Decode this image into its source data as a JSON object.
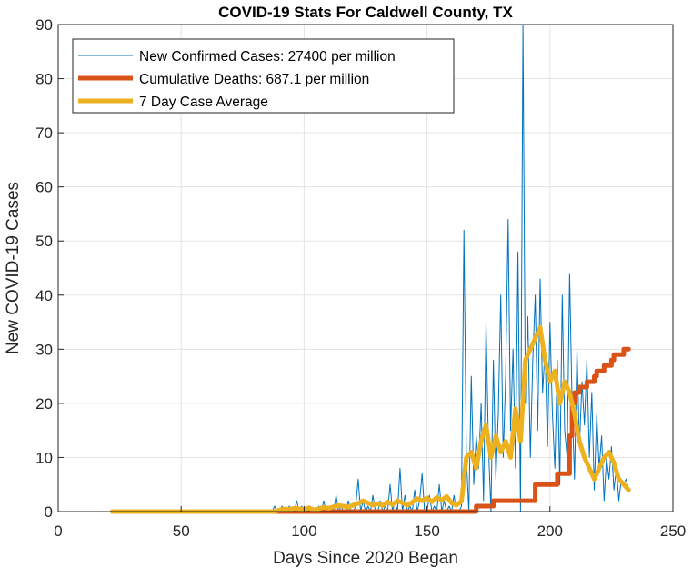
{
  "chart_data": {
    "type": "line",
    "title": "COVID-19 Stats For Caldwell County, TX",
    "xlabel": "Days Since 2020 Began",
    "ylabel": "New COVID-19 Cases",
    "xlim": [
      0,
      250
    ],
    "ylim": [
      0,
      90
    ],
    "xticks": [
      0,
      50,
      100,
      150,
      200,
      250
    ],
    "yticks": [
      0,
      10,
      20,
      30,
      40,
      50,
      60,
      70,
      80,
      90
    ],
    "grid": true,
    "legend_position": "top-left",
    "series": [
      {
        "name": "New Confirmed Cases: 27400 per million",
        "color": "#0072BD",
        "x": [
          22,
          87,
          88,
          89,
          90,
          91,
          92,
          93,
          94,
          95,
          96,
          97,
          98,
          99,
          100,
          101,
          102,
          103,
          104,
          105,
          106,
          107,
          108,
          109,
          110,
          111,
          112,
          113,
          114,
          115,
          116,
          117,
          118,
          119,
          120,
          121,
          122,
          123,
          124,
          125,
          126,
          127,
          128,
          129,
          130,
          131,
          132,
          133,
          134,
          135,
          136,
          137,
          138,
          139,
          140,
          141,
          142,
          143,
          144,
          145,
          146,
          147,
          148,
          149,
          150,
          151,
          152,
          153,
          154,
          155,
          156,
          157,
          158,
          159,
          160,
          161,
          162,
          163,
          164,
          165,
          166,
          167,
          168,
          169,
          170,
          171,
          172,
          173,
          174,
          175,
          176,
          177,
          178,
          179,
          180,
          181,
          182,
          183,
          184,
          185,
          186,
          187,
          188,
          189,
          190,
          191,
          192,
          193,
          194,
          195,
          196,
          197,
          198,
          199,
          200,
          201,
          202,
          203,
          204,
          205,
          206,
          207,
          208,
          209,
          210,
          211,
          212,
          213,
          214,
          215,
          216,
          217,
          218,
          219,
          220,
          221,
          222,
          223,
          224,
          225,
          226,
          227,
          228,
          229,
          230,
          231,
          232
        ],
        "values": [
          0,
          0,
          1,
          0,
          0,
          1,
          0,
          0,
          1,
          0,
          0,
          2,
          0,
          1,
          0,
          0,
          1,
          0,
          0,
          0,
          1,
          0,
          2,
          0,
          0,
          1,
          0,
          3,
          0,
          1,
          0,
          0,
          2,
          0,
          0,
          1,
          6,
          0,
          2,
          0,
          1,
          0,
          3,
          0,
          0,
          2,
          0,
          1,
          0,
          5,
          0,
          2,
          0,
          8,
          0,
          3,
          0,
          1,
          0,
          4,
          0,
          2,
          7,
          0,
          0,
          3,
          0,
          1,
          0,
          5,
          0,
          2,
          0,
          1,
          0,
          3,
          0,
          0,
          1,
          52,
          10,
          0,
          25,
          5,
          14,
          8,
          20,
          2,
          35,
          12,
          0,
          28,
          6,
          18,
          40,
          10,
          25,
          54,
          15,
          30,
          8,
          48,
          0,
          90,
          20,
          36,
          10,
          28,
          40,
          15,
          43,
          22,
          30,
          12,
          35,
          18,
          8,
          28,
          5,
          40,
          15,
          10,
          44,
          20,
          6,
          30,
          12,
          24,
          16,
          28,
          10,
          22,
          4,
          18,
          8,
          14,
          2,
          10,
          6,
          12,
          4,
          8,
          2,
          6,
          5,
          6,
          4
        ]
      },
      {
        "name": "Cumulative Deaths: 687.1 per million",
        "color": "#D95319",
        "x": [
          22,
          166,
          168,
          169,
          170,
          176,
          177,
          184,
          185,
          193,
          194,
          202,
          203,
          207,
          208,
          209,
          210,
          211,
          212,
          213,
          214,
          215,
          216,
          217,
          218,
          219,
          220,
          221,
          222,
          223,
          224,
          225,
          226,
          227,
          228,
          229,
          230,
          231,
          232
        ],
        "values": [
          0,
          0,
          0,
          0,
          1,
          1,
          2,
          2,
          2,
          2,
          5,
          5,
          7,
          7,
          14,
          20,
          22,
          22,
          23,
          23,
          23,
          24,
          24,
          24,
          25,
          26,
          26,
          26,
          27,
          27,
          27,
          28,
          29,
          29,
          29,
          29,
          30,
          30,
          30
        ]
      },
      {
        "name": "7 Day Case Average",
        "color": "#EDB120",
        "x": [
          22,
          88,
          90,
          92,
          94,
          96,
          98,
          100,
          102,
          104,
          106,
          108,
          110,
          112,
          114,
          116,
          118,
          120,
          122,
          124,
          126,
          128,
          130,
          132,
          134,
          136,
          138,
          140,
          142,
          144,
          146,
          148,
          150,
          152,
          154,
          156,
          158,
          160,
          162,
          164,
          166,
          168,
          170,
          172,
          174,
          176,
          178,
          180,
          182,
          184,
          186,
          188,
          190,
          192,
          194,
          196,
          198,
          200,
          202,
          204,
          206,
          208,
          210,
          212,
          214,
          216,
          218,
          220,
          222,
          224,
          226,
          228,
          230,
          232
        ],
        "values": [
          0,
          0,
          0.3,
          0.5,
          0.4,
          0.6,
          0.5,
          0.4,
          0.7,
          0.3,
          0.5,
          0.8,
          0.6,
          0.9,
          1.1,
          1.0,
          0.8,
          1.2,
          1.5,
          2.0,
          1.6,
          1.2,
          1.5,
          1.1,
          1.8,
          1.3,
          2.0,
          1.6,
          1.2,
          1.7,
          2.4,
          2.0,
          2.5,
          1.8,
          2.6,
          2.1,
          2.8,
          1.6,
          1.2,
          1.9,
          10,
          11,
          8,
          13,
          16,
          10,
          14,
          11,
          13,
          10,
          19,
          13,
          28,
          30,
          32,
          34,
          28,
          24,
          26,
          20,
          24,
          22,
          18,
          13,
          10,
          8,
          6,
          8,
          10,
          11,
          9,
          6,
          5,
          4
        ]
      }
    ]
  }
}
